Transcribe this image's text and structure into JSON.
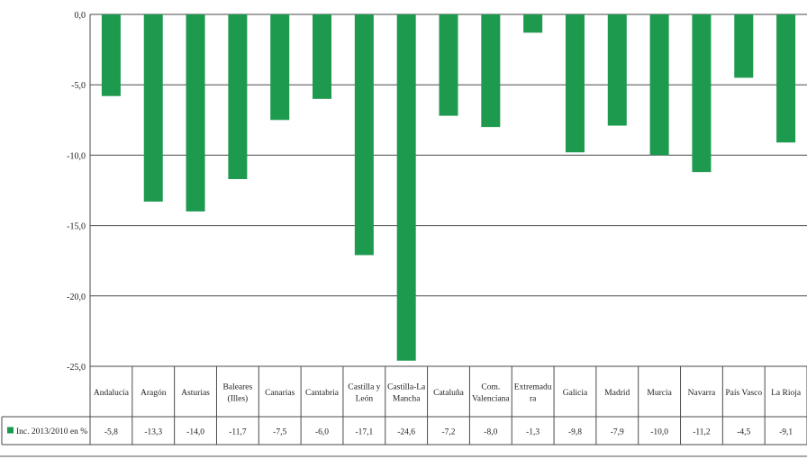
{
  "chart_data": {
    "type": "bar",
    "categories": [
      [
        "Andalucía"
      ],
      [
        "Aragón"
      ],
      [
        "Asturias"
      ],
      [
        "Baleares",
        "(Illes)"
      ],
      [
        "Canarias"
      ],
      [
        "Cantabria"
      ],
      [
        "Castilla y",
        "León"
      ],
      [
        "Castilla-La",
        "Mancha"
      ],
      [
        "Cataluña"
      ],
      [
        "Com.",
        "Valenciana"
      ],
      [
        "Extremadu",
        "ra"
      ],
      [
        "Galicia"
      ],
      [
        "Madrid"
      ],
      [
        "Murcia"
      ],
      [
        "Navarra"
      ],
      [
        "País Vasco"
      ],
      [
        "La Rioja"
      ]
    ],
    "series": [
      {
        "name": "Inc. 2013/2010 en %",
        "values": [
          -5.8,
          -13.3,
          -14.0,
          -11.7,
          -7.5,
          -6.0,
          -17.1,
          -24.6,
          -7.2,
          -8.0,
          -1.3,
          -9.8,
          -7.9,
          -10.0,
          -11.2,
          -4.5,
          -9.1
        ],
        "value_labels": [
          "-5,8",
          "-13,3",
          "-14,0",
          "-11,7",
          "-7,5",
          "-6,0",
          "-17,1",
          "-24,6",
          "-7,2",
          "-8,0",
          "-1,3",
          "-9,8",
          "-7,9",
          "-10,0",
          "-11,2",
          "-4,5",
          "-9,1"
        ],
        "color": "#1e9a4f"
      }
    ],
    "yticks": [
      "0,0",
      "-5,0",
      "-10,0",
      "-15,0",
      "-20,0",
      "-25,0"
    ],
    "ylim": [
      -25,
      0
    ],
    "grid": true,
    "legend": "data-table-left"
  }
}
